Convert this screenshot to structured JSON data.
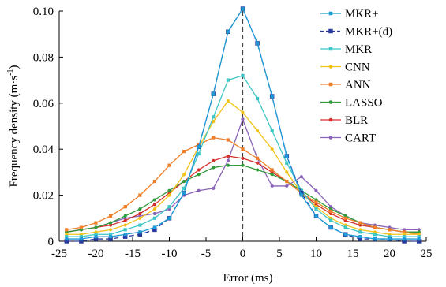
{
  "chart_data": {
    "type": "line",
    "xlabel": "Error (ms)",
    "ylabel_base": "Frequency density (m·s",
    "ylabel_sup": "-1",
    "ylabel_close": ")",
    "xlim": [
      -25,
      25
    ],
    "ylim": [
      0,
      0.1
    ],
    "xticks": [
      -25,
      -20,
      -15,
      -10,
      -5,
      0,
      5,
      10,
      15,
      20,
      25
    ],
    "xtick_labels": [
      "-25",
      "-20",
      "-15",
      "-10",
      "-5",
      "0",
      "5",
      "10",
      "15",
      "20",
      "25"
    ],
    "yticks": [
      0,
      0.02,
      0.04,
      0.06,
      0.08,
      0.1
    ],
    "ytick_labels": [
      "0",
      "0.02",
      "0.04",
      "0.06",
      "0.08",
      "0.10"
    ],
    "vertical_reference_line": 0,
    "legend_position": "top-right",
    "grid": false,
    "x": [
      -24,
      -22,
      -20,
      -18,
      -16,
      -14,
      -12,
      -10,
      -8,
      -6,
      -4,
      -2,
      0,
      2,
      4,
      6,
      8,
      10,
      12,
      14,
      16,
      18,
      20,
      22,
      24
    ],
    "series": [
      {
        "name": "MKR+",
        "color": "#1e9bd7",
        "marker": "square",
        "dash": "none",
        "values": [
          0.001,
          0.001,
          0.002,
          0.002,
          0.003,
          0.004,
          0.006,
          0.01,
          0.021,
          0.041,
          0.064,
          0.091,
          0.101,
          0.086,
          0.063,
          0.037,
          0.02,
          0.011,
          0.006,
          0.003,
          0.002,
          0.001,
          0.001,
          0.001,
          0.001
        ]
      },
      {
        "name": "MKR+(d)",
        "color": "#2a3a9c",
        "marker": "square",
        "dash": "6,4",
        "values": [
          0.0,
          0.0,
          0.001,
          0.001,
          0.002,
          0.003,
          0.005,
          0.01,
          0.021,
          0.041,
          0.064,
          0.091,
          0.101,
          0.086,
          0.063,
          0.037,
          0.021,
          0.011,
          0.006,
          0.003,
          0.001,
          0.001,
          0.001,
          0.0,
          0.0
        ]
      },
      {
        "name": "MKR",
        "color": "#3ec6c6",
        "marker": "square",
        "dash": "none",
        "values": [
          0.002,
          0.002,
          0.003,
          0.003,
          0.005,
          0.007,
          0.01,
          0.015,
          0.023,
          0.038,
          0.054,
          0.07,
          0.072,
          0.062,
          0.048,
          0.034,
          0.022,
          0.014,
          0.009,
          0.006,
          0.004,
          0.003,
          0.002,
          0.002,
          0.002
        ]
      },
      {
        "name": "CNN",
        "color": "#f2c21a",
        "marker": "circle",
        "dash": "none",
        "values": [
          0.003,
          0.003,
          0.004,
          0.005,
          0.007,
          0.01,
          0.014,
          0.02,
          0.029,
          0.041,
          0.052,
          0.061,
          0.056,
          0.048,
          0.04,
          0.03,
          0.021,
          0.015,
          0.01,
          0.007,
          0.005,
          0.004,
          0.003,
          0.003,
          0.003
        ]
      },
      {
        "name": "ANN",
        "color": "#f07f2a",
        "marker": "square",
        "dash": "none",
        "values": [
          0.005,
          0.006,
          0.008,
          0.011,
          0.015,
          0.02,
          0.026,
          0.033,
          0.039,
          0.042,
          0.045,
          0.044,
          0.04,
          0.036,
          0.031,
          0.026,
          0.021,
          0.017,
          0.013,
          0.01,
          0.008,
          0.006,
          0.005,
          0.004,
          0.003
        ]
      },
      {
        "name": "LASSO",
        "color": "#2e9a3a",
        "marker": "circle",
        "dash": "none",
        "values": [
          0.004,
          0.005,
          0.006,
          0.008,
          0.011,
          0.014,
          0.018,
          0.022,
          0.026,
          0.029,
          0.032,
          0.033,
          0.033,
          0.031,
          0.029,
          0.026,
          0.022,
          0.018,
          0.014,
          0.011,
          0.008,
          0.006,
          0.005,
          0.004,
          0.004
        ]
      },
      {
        "name": "BLR",
        "color": "#d2302a",
        "marker": "circle",
        "dash": "none",
        "values": [
          0.004,
          0.005,
          0.006,
          0.007,
          0.009,
          0.012,
          0.016,
          0.021,
          0.026,
          0.031,
          0.035,
          0.037,
          0.036,
          0.034,
          0.03,
          0.026,
          0.021,
          0.016,
          0.012,
          0.009,
          0.007,
          0.006,
          0.005,
          0.004,
          0.004
        ]
      },
      {
        "name": "CART",
        "color": "#8a62b8",
        "marker": "circle",
        "dash": "none",
        "values": [
          0.004,
          0.005,
          0.006,
          0.008,
          0.01,
          0.011,
          0.012,
          0.014,
          0.02,
          0.022,
          0.023,
          0.035,
          0.053,
          0.036,
          0.024,
          0.024,
          0.028,
          0.022,
          0.015,
          0.011,
          0.008,
          0.007,
          0.006,
          0.005,
          0.005
        ]
      }
    ]
  }
}
